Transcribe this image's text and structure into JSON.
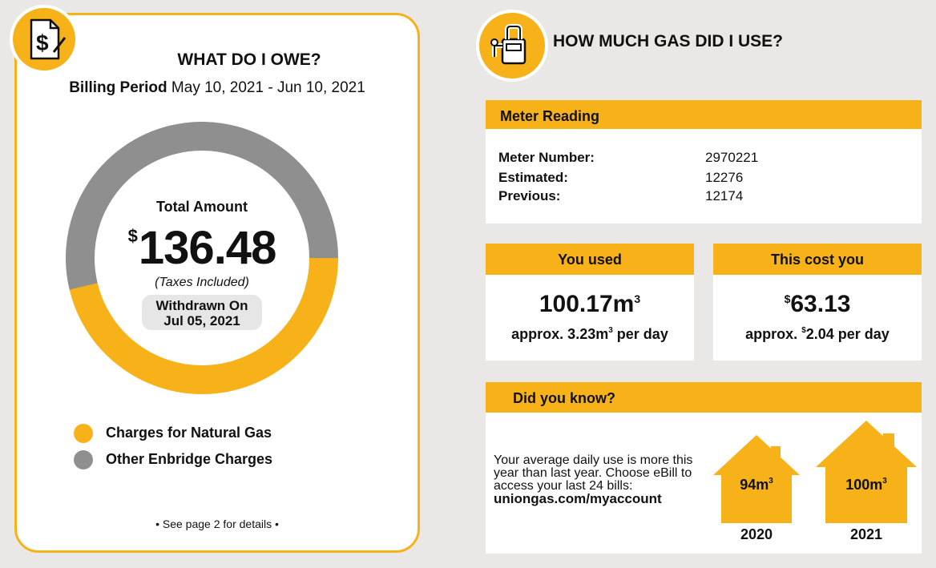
{
  "owe": {
    "title": "WHAT DO I OWE?",
    "billing_label": "Billing Period",
    "billing_period": "May 10, 2021 - Jun 10, 2021",
    "total_label": "Total Amount",
    "currency": "$",
    "total": "136.48",
    "taxes_note": "(Taxes Included)",
    "withdrawn_line1": "Withdrawn On",
    "withdrawn_line2": "Jul 05, 2021",
    "legend": [
      {
        "label": "Charges for Natural Gas",
        "color": "#f7b21a"
      },
      {
        "label": "Other Enbridge Charges",
        "color": "#8f8f8f"
      }
    ],
    "footnote": "• See page 2 for details •"
  },
  "chart_data": {
    "type": "pie",
    "categories": [
      "Charges for Natural Gas",
      "Other Enbridge Charges"
    ],
    "values": [
      63.13,
      73.35
    ],
    "colors": [
      "#f7b21a",
      "#8f8f8f"
    ]
  },
  "gas": {
    "title": "HOW MUCH GAS DID I USE?",
    "meter": {
      "heading": "Meter Reading",
      "rows": [
        {
          "label": "Meter Number:",
          "value": "2970221"
        },
        {
          "label": "Estimated:",
          "value": "12276"
        },
        {
          "label": "Previous:",
          "value": "12174"
        }
      ]
    },
    "used": {
      "heading": "You used",
      "value": "100.17m",
      "value_sup": "3",
      "approx": "approx. 3.23m",
      "approx_sup": "3",
      "approx_suffix": " per day"
    },
    "cost": {
      "heading": "This cost you",
      "currency": "$",
      "value": "63.13",
      "approx_prefix": "approx. ",
      "approx_currency": "$",
      "approx": "2.04 per day"
    },
    "dyk": {
      "heading": "Did you know?",
      "text": "Your average daily use is more this year than last year. Choose eBill to access your last 24 bills:",
      "url": "uniongas.com/myaccount",
      "houses": [
        {
          "value": "94m",
          "sup": "3",
          "year": "2020"
        },
        {
          "value": "100m",
          "sup": "3",
          "year": "2021"
        }
      ]
    }
  },
  "colors": {
    "accent": "#f7b21a",
    "gray": "#8f8f8f"
  }
}
